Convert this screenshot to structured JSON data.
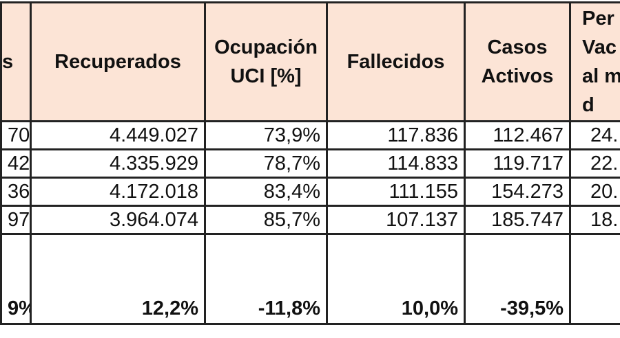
{
  "table": {
    "header": [
      [
        "s"
      ],
      [
        "Recuperados"
      ],
      [
        "Ocupación",
        "UCI [%]"
      ],
      [
        "Fallecidos"
      ],
      [
        "Casos",
        "Activos"
      ],
      [
        "Per",
        "Vac",
        "al m",
        "d"
      ]
    ],
    "rows": [
      [
        "70",
        "4.449.027",
        "73,9%",
        "117.836",
        "112.467",
        "24."
      ],
      [
        "42",
        "4.335.929",
        "78,7%",
        "114.833",
        "119.717",
        "22."
      ],
      [
        "36",
        "4.172.018",
        "83,4%",
        "111.155",
        "154.273",
        "20."
      ],
      [
        "97",
        "3.964.074",
        "85,7%",
        "107.137",
        "185.747",
        "18."
      ]
    ],
    "footer": [
      "9%",
      "12,2%",
      "-11,8%",
      "10,0%",
      "-39,5%"
    ]
  }
}
